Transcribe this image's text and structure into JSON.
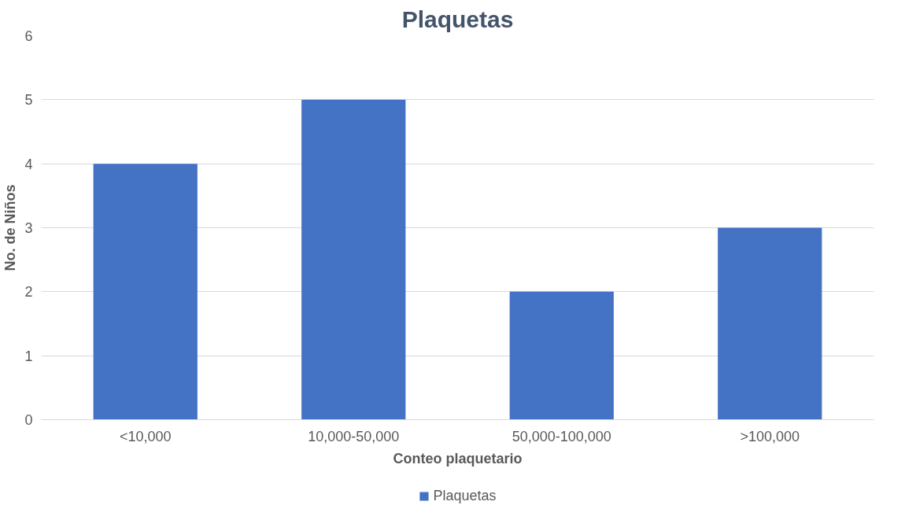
{
  "chart_data": {
    "type": "bar",
    "title": "Plaquetas",
    "xlabel": "Conteo plaquetario",
    "ylabel": "No. de Niños",
    "categories": [
      "<10,000",
      "10,000-50,000",
      "50,000-100,000",
      ">100,000"
    ],
    "series": [
      {
        "name": "Plaquetas",
        "color": "#4472c4",
        "values": [
          4,
          5,
          2,
          3
        ]
      }
    ],
    "ylim": [
      0,
      6
    ],
    "yticks": [
      0,
      1,
      2,
      3,
      4,
      5,
      6
    ],
    "grid": "y",
    "legend": "bottom"
  }
}
